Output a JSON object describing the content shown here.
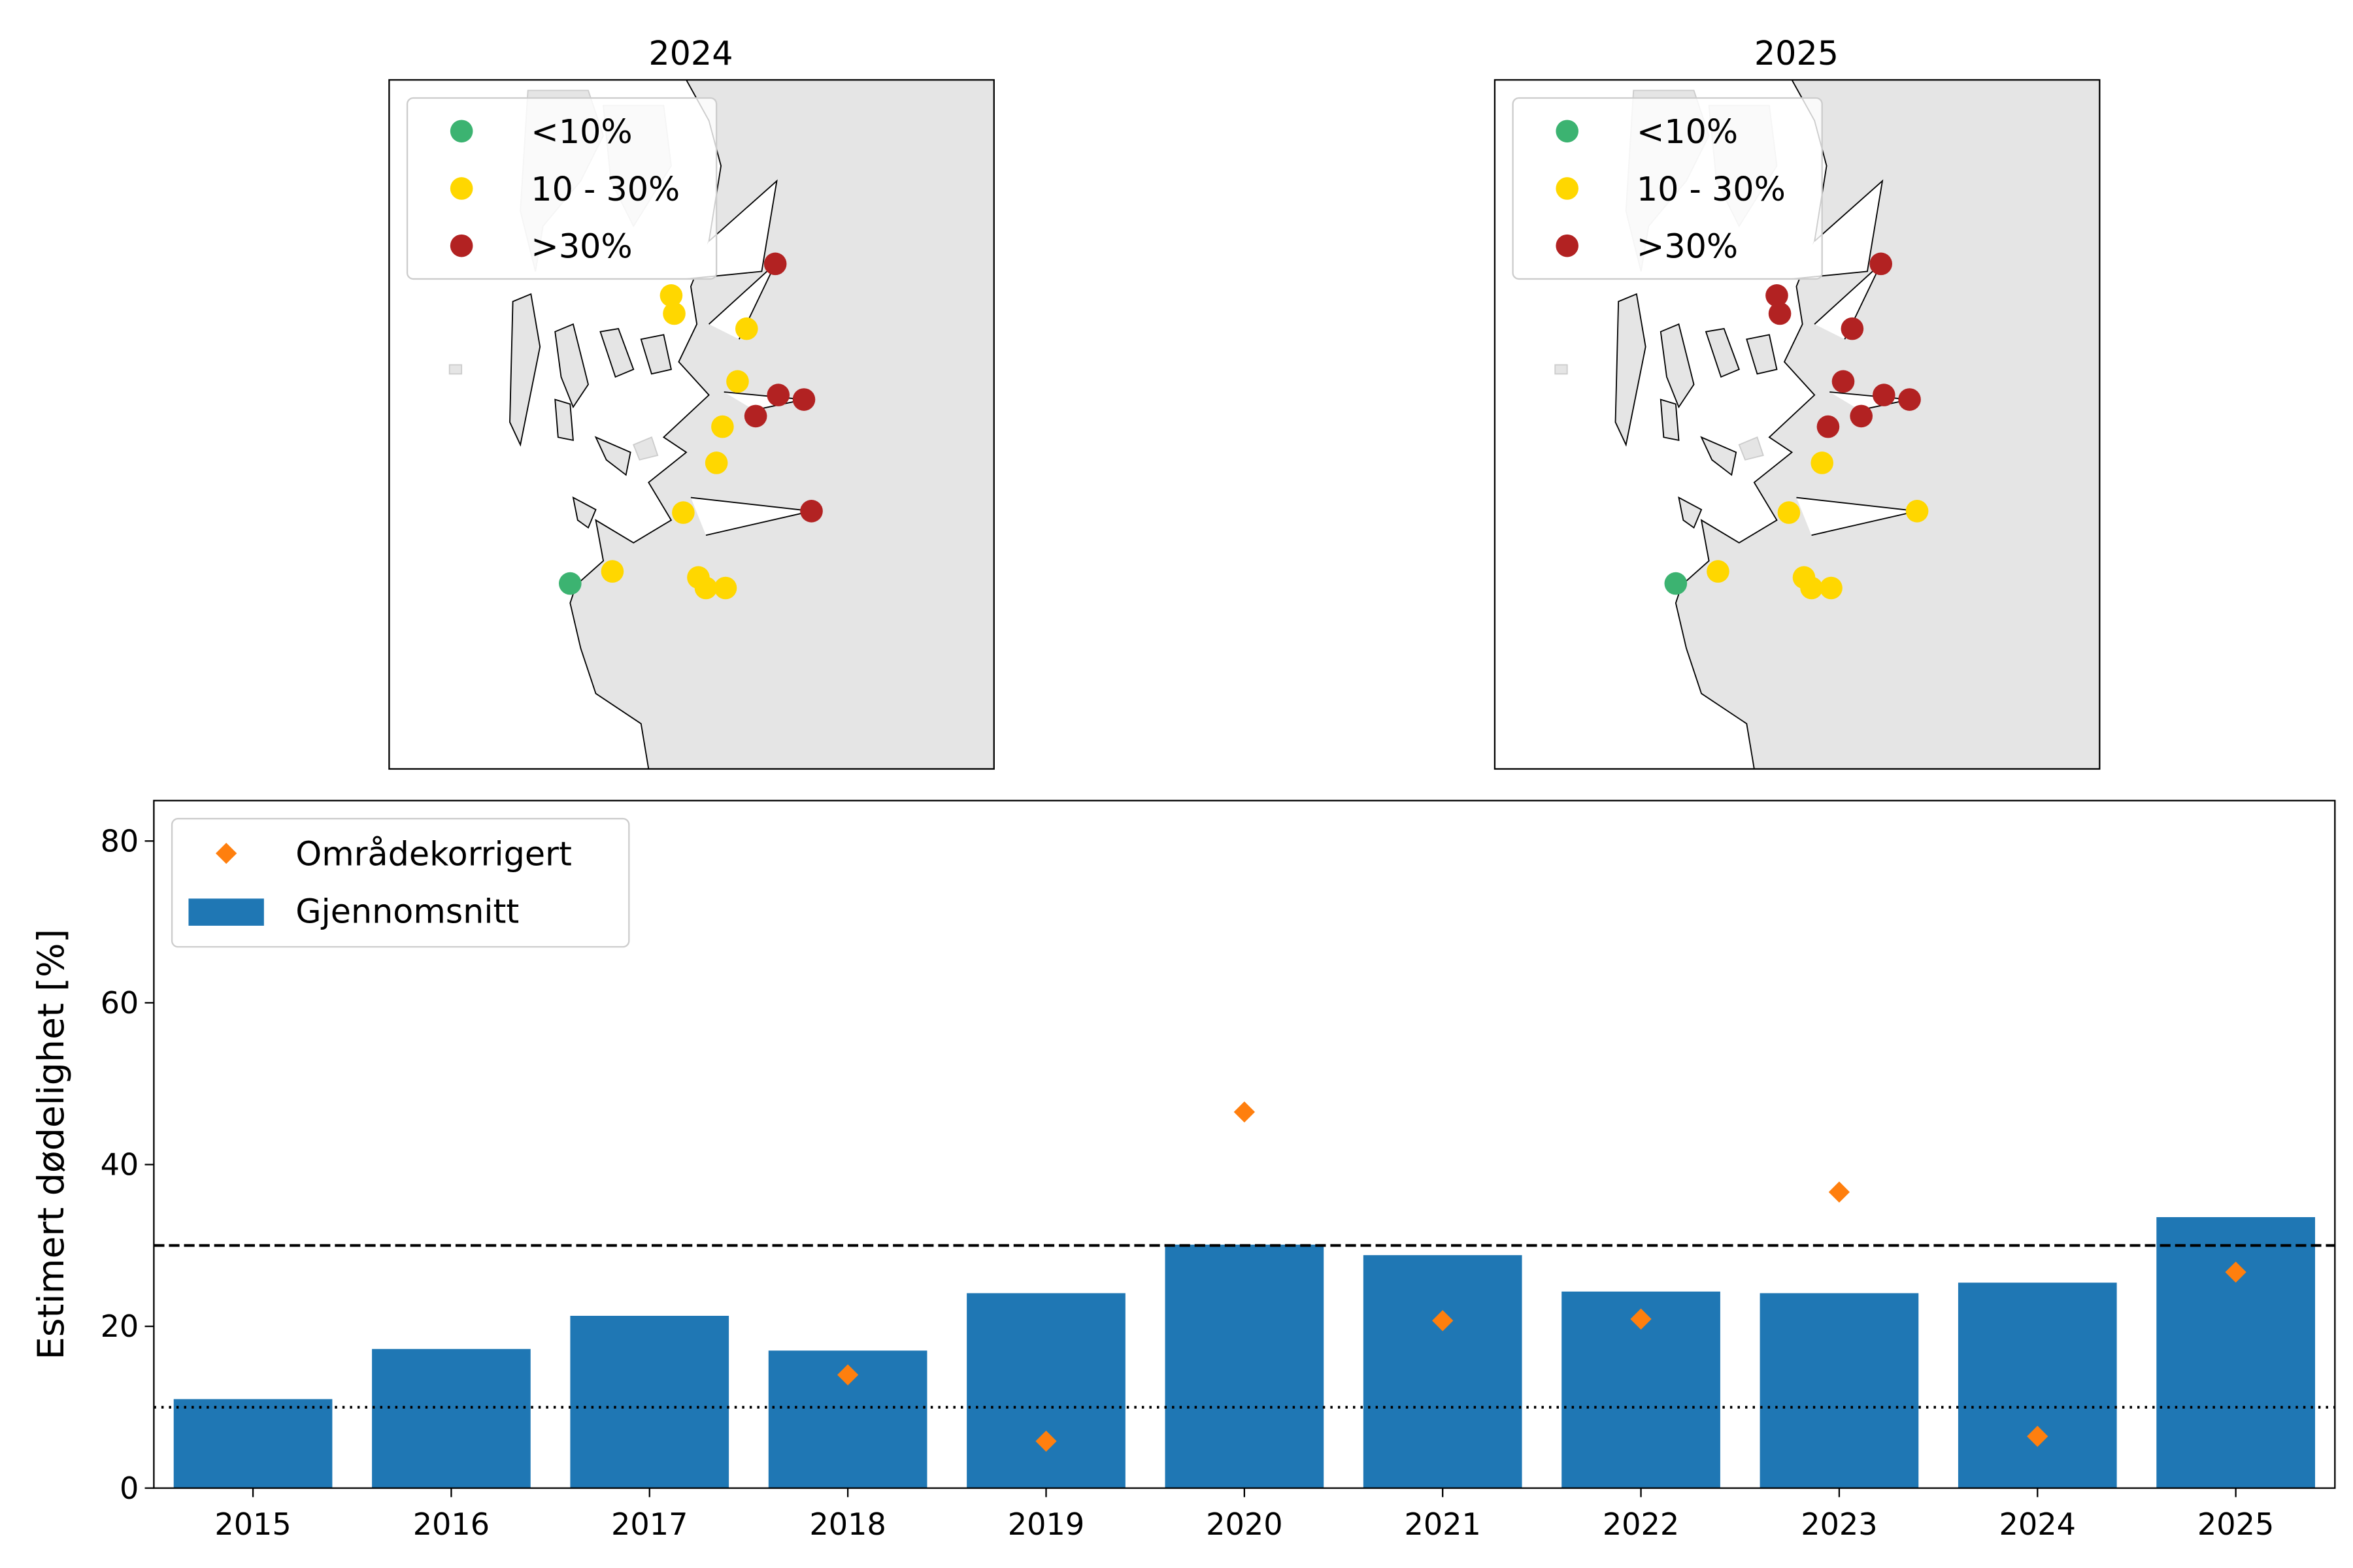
{
  "colors": {
    "green": "#3cb371",
    "yellow": "#ffd700",
    "red": "#b22222",
    "bar": "#1f77b4",
    "marker": "#ff7f0e",
    "land": "#e5e5e5"
  },
  "maps": [
    {
      "title": "2024",
      "categories": [
        "Y",
        "Y",
        "Y",
        "R",
        "Y",
        "R",
        "R",
        "R",
        "Y",
        "Y",
        "Y",
        "R",
        "G",
        "Y",
        "Y",
        "Y",
        "Y"
      ]
    },
    {
      "title": "2025",
      "categories": [
        "R",
        "R",
        "R",
        "R",
        "R",
        "R",
        "R",
        "R",
        "R",
        "Y",
        "Y",
        "Y",
        "G",
        "Y",
        "Y",
        "Y",
        "Y"
      ]
    }
  ],
  "map_legend": [
    {
      "key": "G",
      "label": "<10%"
    },
    {
      "key": "Y",
      "label": "10 - 30%"
    },
    {
      "key": "R",
      "label": ">30%"
    }
  ],
  "chart_data": {
    "type": "bar",
    "categories": [
      "2015",
      "2016",
      "2017",
      "2018",
      "2019",
      "2020",
      "2021",
      "2022",
      "2023",
      "2024",
      "2025"
    ],
    "series": [
      {
        "name": "Gjennomsnitt",
        "type": "bar",
        "values": [
          11.0,
          17.2,
          21.3,
          17.0,
          24.1,
          30.1,
          28.8,
          24.3,
          24.1,
          25.4,
          33.5
        ]
      },
      {
        "name": "Områdekorrigert",
        "type": "scatter",
        "marker": "diamond",
        "values": [
          null,
          null,
          null,
          14.0,
          5.8,
          46.5,
          20.7,
          20.9,
          36.6,
          6.4,
          26.7
        ]
      }
    ],
    "ylabel": "Estimert dødelighet [%]",
    "xlabel": "",
    "ylim": [
      0,
      85
    ],
    "yticks": [
      0,
      20,
      40,
      60,
      80
    ],
    "hlines": [
      {
        "y": 30,
        "style": "dashed"
      },
      {
        "y": 10,
        "style": "dotted"
      }
    ],
    "legend_placement": "top-left",
    "grid": false
  }
}
